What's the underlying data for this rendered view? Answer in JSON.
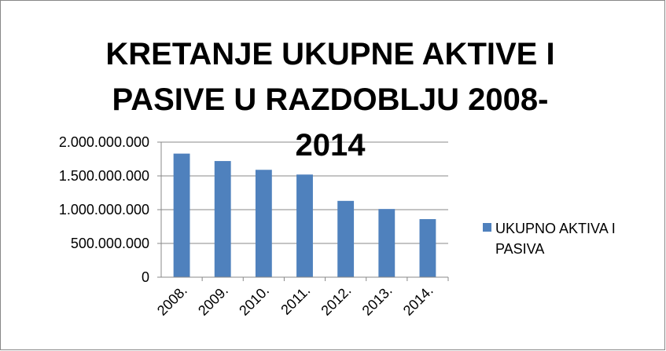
{
  "chart_data": {
    "type": "bar",
    "title": "KRETANJE UKUPNE AKTIVE I PASIVE U RAZDOBLJU 2008-2014",
    "categories": [
      "2008.",
      "2009.",
      "2010.",
      "2011.",
      "2012.",
      "2013.",
      "2014."
    ],
    "series": [
      {
        "name": "UKUPNO AKTIVA I PASIVA",
        "color": "#4f81bd",
        "values": [
          1830000000,
          1720000000,
          1590000000,
          1520000000,
          1130000000,
          1010000000,
          860000000
        ]
      }
    ],
    "ylim": [
      0,
      2000000000
    ],
    "yticks": [
      0,
      {
        "value": 500000000,
        "label": "500.000.000"
      },
      {
        "value": 1000000000,
        "label": "1.000.000.000"
      },
      {
        "value": 1500000000,
        "label": "1.500.000.000"
      },
      {
        "value": 2000000000,
        "label": "2.000.000.000"
      }
    ],
    "grid": true,
    "legend": "right"
  }
}
